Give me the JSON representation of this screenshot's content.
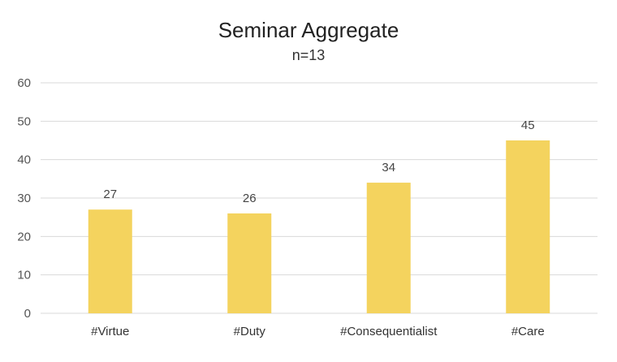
{
  "chart_data": {
    "type": "bar",
    "title": "Seminar Aggregate",
    "subtitle": "n=13",
    "categories": [
      "#Virtue",
      "#Duty",
      "#Consequentialist",
      "#Care"
    ],
    "values": [
      27,
      26,
      34,
      45
    ],
    "data_labels": [
      "27",
      "26",
      "34",
      "45"
    ],
    "ylim": [
      0,
      60
    ],
    "yticks": [
      0,
      10,
      20,
      30,
      40,
      50,
      60
    ],
    "xlabel": "",
    "ylabel": "",
    "grid": true,
    "legend": "none",
    "bar_color": "#F4D35E",
    "grid_color": "#D9D9D9"
  }
}
